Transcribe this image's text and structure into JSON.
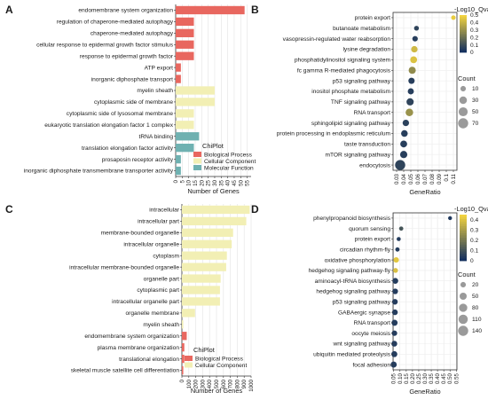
{
  "panel_labels": [
    "A",
    "B",
    "C",
    "D"
  ],
  "colors": {
    "Biological Process": "#e8675f",
    "Cellular Component": "#f2efb4",
    "Molecular Function": "#6fb1b1",
    "gradient_high": "#f1d23f",
    "gradient_low": "#15315f"
  },
  "chart_data": [
    {
      "panel": "A",
      "type": "bar",
      "orientation": "horizontal",
      "xlabel": "Number of Genes",
      "xlim": [
        0,
        58
      ],
      "xticks": [
        0,
        5,
        10,
        15,
        20,
        25,
        30,
        35,
        40,
        45,
        50,
        55
      ],
      "grid": true,
      "legend": {
        "title": "ChiPlot",
        "position": "bottom-right",
        "entries": [
          "Biological Process",
          "Cellular Component",
          "Molecular Function"
        ]
      },
      "categories": [
        "endomembrane system organization",
        "regulation of chaperone-mediated autophagy",
        "chaperone-mediated autophagy",
        "cellular response to epidermal growth factor stimulus",
        "response to epidermal growth factor",
        "ATP export",
        "inorganic diphosphate transport",
        "myelin sheath",
        "cytoplasmic side of membrane",
        "cytoplasmic side of lysosomal membrane",
        "eukaryotic translation elongation factor 1 complex",
        "tRNA binding",
        "translation elongation factor activity",
        "prosaposin receptor activity",
        "inorganic diphosphate transmembrane transporter activity"
      ],
      "values": [
        53,
        14,
        14,
        14,
        14,
        4,
        4,
        30,
        30,
        14,
        14,
        18,
        14,
        4,
        4
      ],
      "groups": [
        "Biological Process",
        "Biological Process",
        "Biological Process",
        "Biological Process",
        "Biological Process",
        "Biological Process",
        "Biological Process",
        "Cellular Component",
        "Cellular Component",
        "Cellular Component",
        "Cellular Component",
        "Molecular Function",
        "Molecular Function",
        "Molecular Function",
        "Molecular Function"
      ]
    },
    {
      "panel": "B",
      "type": "scatter",
      "xlabel": "GeneRatio",
      "xlim": [
        0.025,
        0.115
      ],
      "xticks": [
        "0.03",
        "0.04",
        "0.05",
        "0.06",
        "0.07",
        "0.08",
        "0.09",
        "0.1",
        "0.11"
      ],
      "grid": true,
      "color_legend": {
        "title": "-Log10_Qvalue",
        "range": [
          0,
          0.5
        ],
        "ticks": [
          "0.5",
          "0.4",
          "0.3",
          "0.2",
          "0.1",
          "0"
        ]
      },
      "size_legend": {
        "title": "Count",
        "values": [
          10,
          30,
          50,
          70
        ]
      },
      "categories": [
        "protein export",
        "butanoate metabolism",
        "vasopressin-regulated water reabsorption",
        "lysine degradation",
        "phosphatidylinositol signaling system",
        "fc gamma R-mediated phagocytosis",
        "p53 signaling pathway",
        "inositol phosphate metabolism",
        "TNF signaling pathway",
        "RNA transport",
        "sphingolipid signaling pathway",
        "protein processing in endoplasmic reticulum",
        "taste transduction",
        "mTOR signaling pathway",
        "endocytosis"
      ],
      "x": [
        0.11,
        0.058,
        0.056,
        0.055,
        0.054,
        0.052,
        0.051,
        0.05,
        0.049,
        0.048,
        0.043,
        0.041,
        0.04,
        0.04,
        0.035
      ],
      "count": [
        4,
        6,
        10,
        18,
        22,
        25,
        16,
        15,
        26,
        30,
        18,
        20,
        22,
        26,
        70
      ],
      "qvalue": [
        0.48,
        0.06,
        0.04,
        0.42,
        0.45,
        0.28,
        0.04,
        0.04,
        0.06,
        0.3,
        0.05,
        0.04,
        0.04,
        0.04,
        0.06
      ]
    },
    {
      "panel": "C",
      "type": "bar",
      "orientation": "horizontal",
      "xlabel": "Number of Genes",
      "xlim": [
        0,
        1000
      ],
      "xticks": [
        0,
        100,
        200,
        300,
        400,
        500,
        600,
        700,
        800,
        900,
        1000
      ],
      "grid": true,
      "legend": {
        "title": "ChiPlot",
        "position": "bottom-right",
        "entries": [
          "Biological Process",
          "Cellular Component"
        ]
      },
      "categories": [
        "intracellular",
        "intracellular part",
        "membrane-bounded organelle",
        "intracellular organelle",
        "cytoplasm",
        "intracellular membrane-bounded organelle",
        "organelle part",
        "cytoplasmic part",
        "intracellular organelle part",
        "organelle membrane",
        "myelin sheath",
        "endomembrane system organization",
        "plasma membrane organization",
        "translational elongation",
        "skeletal muscle satellite cell differentiation"
      ],
      "values": [
        980,
        930,
        740,
        720,
        650,
        640,
        560,
        550,
        550,
        190,
        20,
        70,
        35,
        35,
        20
      ],
      "groups": [
        "Cellular Component",
        "Cellular Component",
        "Cellular Component",
        "Cellular Component",
        "Cellular Component",
        "Cellular Component",
        "Cellular Component",
        "Cellular Component",
        "Cellular Component",
        "Cellular Component",
        "Cellular Component",
        "Biological Process",
        "Biological Process",
        "Biological Process",
        "Biological Process"
      ]
    },
    {
      "panel": "D",
      "type": "scatter",
      "xlabel": "GeneRatio",
      "xlim": [
        0.045,
        0.555
      ],
      "xticks": [
        "0.05",
        "0.10",
        "0.15",
        "0.20",
        "0.25",
        "0.30",
        "0.35",
        "0.40",
        "0.45",
        "0.50",
        "0.55"
      ],
      "grid": true,
      "color_legend": {
        "title": "-Log10_Qvalue",
        "range": [
          0,
          0.45
        ],
        "ticks": [
          "0.4",
          "0.3",
          "0.2",
          "0.1",
          "0"
        ]
      },
      "size_legend": {
        "title": "Count",
        "values": [
          20,
          50,
          80,
          110,
          140
        ]
      },
      "categories": [
        "phenylpropanoid biosynthesis",
        "quorum sensing",
        "protein export",
        "circadian rhythm-fly",
        "oxidative phosphorylation",
        "hedgehog signaling pathway-fly",
        "aminoacyl-tRNA biosynthesis",
        "hedgehog signaling pathway",
        "p53 signaling pathway",
        "GABAergic synapse",
        "RNA transport",
        "oocyte meiosis",
        "wnt signaling pathway",
        "ubiquitin mediated proteolysis",
        "focal adhesion"
      ],
      "x": [
        0.5,
        0.11,
        0.09,
        0.08,
        0.07,
        0.065,
        0.063,
        0.062,
        0.06,
        0.06,
        0.057,
        0.056,
        0.055,
        0.055,
        0.05
      ],
      "count": [
        4,
        6,
        5,
        7,
        20,
        12,
        25,
        22,
        22,
        22,
        30,
        20,
        25,
        28,
        30
      ],
      "qvalue": [
        0.02,
        0.1,
        0.03,
        0.03,
        0.42,
        0.4,
        0.03,
        0.03,
        0.03,
        0.03,
        0.03,
        0.03,
        0.03,
        0.03,
        0.03
      ]
    }
  ]
}
